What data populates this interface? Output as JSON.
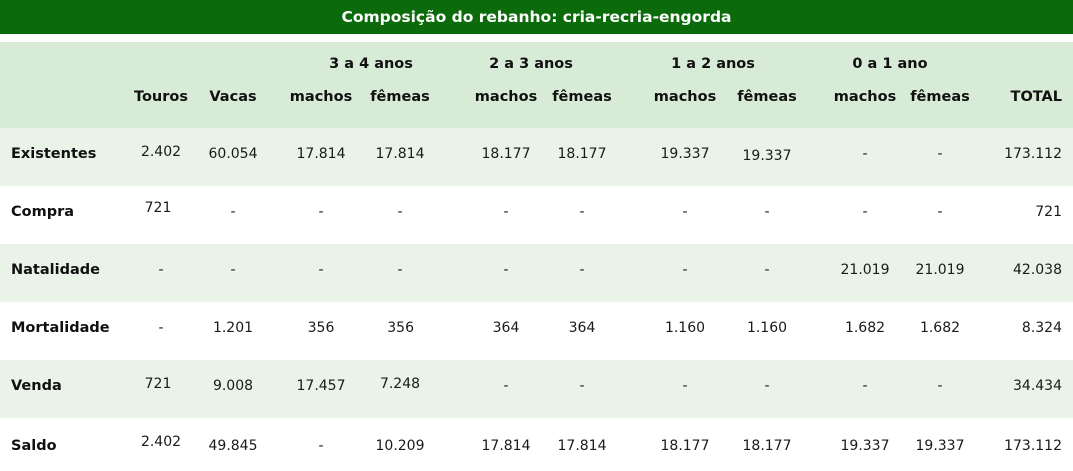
{
  "title": "Composição do rebanho: cria-recria-engorda",
  "groups": [
    "3 a 4  anos",
    "2 a 3 anos",
    "1 a 2 anos",
    "0 a 1 ano"
  ],
  "columns": [
    "Touros",
    "Vacas",
    "machos",
    "fêmeas",
    "machos",
    "fêmeas",
    "machos",
    "fêmeas",
    "machos",
    "fêmeas",
    "TOTAL"
  ],
  "rows": [
    {
      "label": "Existentes",
      "values": [
        "2.402",
        "60.054",
        "17.814",
        "17.814",
        "18.177",
        "18.177",
        "19.337",
        "19.337",
        "-",
        "-",
        "173.112"
      ]
    },
    {
      "label": "Compra",
      "values": [
        "721",
        "-",
        "-",
        "-",
        "-",
        "-",
        "-",
        "-",
        "-",
        "-",
        "721"
      ]
    },
    {
      "label": "Natalidade",
      "values": [
        "-",
        "-",
        "-",
        "-",
        "-",
        "-",
        "-",
        "-",
        "21.019",
        "21.019",
        "42.038"
      ]
    },
    {
      "label": "Mortalidade",
      "values": [
        "-",
        "1.201",
        "356",
        "356",
        "364",
        "364",
        "1.160",
        "1.160",
        "1.682",
        "1.682",
        "8.324"
      ]
    },
    {
      "label": "Venda",
      "values": [
        "721",
        "9.008",
        "17.457",
        "7.248",
        "-",
        "-",
        "-",
        "-",
        "-",
        "-",
        "34.434"
      ]
    },
    {
      "label": "Saldo",
      "values": [
        "2.402",
        "49.845",
        "-",
        "10.209",
        "17.814",
        "17.814",
        "18.177",
        "18.177",
        "19.337",
        "19.337",
        "173.112"
      ]
    }
  ],
  "colors": {
    "title_bg": "#0b6b0b",
    "header_bg": "#d8ebd6",
    "row_alt_bg": "#e9f3e8"
  }
}
